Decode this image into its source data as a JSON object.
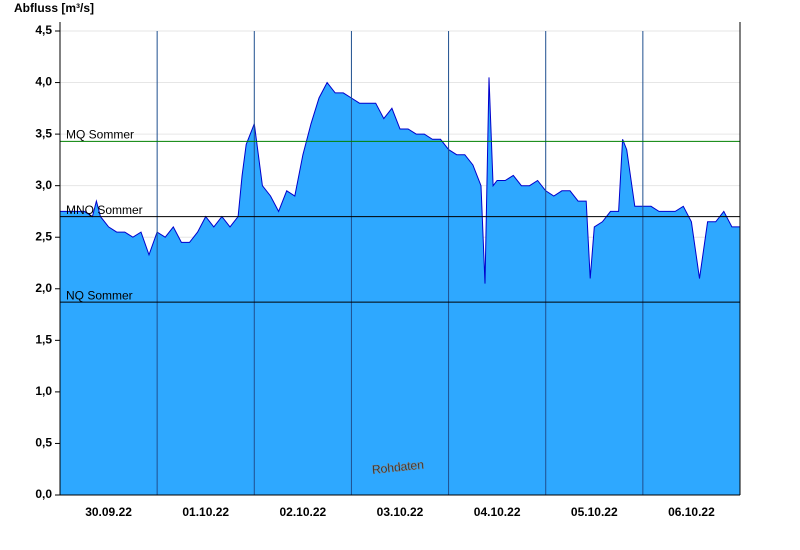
{
  "chart_data": {
    "type": "area",
    "y_label": "Abfluss [m³/s]",
    "annotation": "Rohdaten",
    "fill_color": "#2ea8ff",
    "line_color": "#0000cc",
    "grid": true,
    "x": [
      0,
      2,
      4,
      6,
      8,
      9,
      10,
      12,
      14,
      16,
      18,
      20,
      22,
      24,
      26,
      28,
      30,
      32,
      34,
      36,
      38,
      40,
      42,
      44,
      45,
      46,
      48,
      50,
      52,
      54,
      56,
      58,
      60,
      62,
      64,
      66,
      68,
      70,
      72,
      74,
      76,
      78,
      80,
      82,
      84,
      86,
      88,
      90,
      92,
      94,
      96,
      98,
      100,
      102,
      104,
      105,
      106,
      107,
      108,
      110,
      112,
      114,
      116,
      118,
      120,
      122,
      124,
      126,
      128,
      130,
      131,
      132,
      134,
      136,
      138,
      139,
      140,
      142,
      144,
      146,
      148,
      150,
      152,
      154,
      156,
      158,
      160,
      162,
      164,
      166,
      168
    ],
    "values": [
      2.75,
      2.75,
      2.75,
      2.75,
      2.7,
      2.85,
      2.7,
      2.6,
      2.55,
      2.55,
      2.5,
      2.55,
      2.33,
      2.55,
      2.5,
      2.6,
      2.45,
      2.45,
      2.55,
      2.7,
      2.6,
      2.7,
      2.6,
      2.7,
      3.1,
      3.4,
      3.6,
      3.0,
      2.9,
      2.75,
      2.95,
      2.9,
      3.3,
      3.6,
      3.85,
      4.0,
      3.9,
      3.9,
      3.85,
      3.8,
      3.8,
      3.8,
      3.65,
      3.75,
      3.55,
      3.55,
      3.5,
      3.5,
      3.45,
      3.45,
      3.35,
      3.3,
      3.3,
      3.2,
      3.0,
      2.05,
      4.05,
      3.0,
      3.05,
      3.05,
      3.1,
      3.0,
      3.0,
      3.05,
      2.95,
      2.9,
      2.95,
      2.95,
      2.85,
      2.85,
      2.1,
      2.6,
      2.65,
      2.75,
      2.75,
      3.45,
      3.35,
      2.8,
      2.8,
      2.8,
      2.75,
      2.75,
      2.75,
      2.8,
      2.65,
      2.1,
      2.65,
      2.65,
      2.75,
      2.6,
      2.6
    ],
    "xlim": [
      0,
      168
    ],
    "xticks": [
      {
        "value": 12,
        "label": "30.09.22"
      },
      {
        "value": 36,
        "label": "01.10.22"
      },
      {
        "value": 60,
        "label": "02.10.22"
      },
      {
        "value": 84,
        "label": "03.10.22"
      },
      {
        "value": 108,
        "label": "04.10.22"
      },
      {
        "value": 132,
        "label": "05.10.22"
      },
      {
        "value": 156,
        "label": "06.10.22"
      }
    ],
    "xgrid": [
      24,
      48,
      72,
      96,
      120,
      144
    ],
    "ylim": [
      0,
      4.5
    ],
    "yticks": [
      {
        "value": 0,
        "label": "0,0"
      },
      {
        "value": 0.5,
        "label": "0,5"
      },
      {
        "value": 1,
        "label": "1,0"
      },
      {
        "value": 1.5,
        "label": "1,5"
      },
      {
        "value": 2,
        "label": "2,0"
      },
      {
        "value": 2.5,
        "label": "2,5"
      },
      {
        "value": 3,
        "label": "3,0"
      },
      {
        "value": 3.5,
        "label": "3,5"
      },
      {
        "value": 4,
        "label": "4,0"
      },
      {
        "value": 4.5,
        "label": "4,5"
      }
    ],
    "reference_lines": [
      {
        "label": "MQ Sommer",
        "value": 3.43,
        "color": "#008000"
      },
      {
        "label": "MNQ Sommer",
        "value": 2.7,
        "color": "#000000"
      },
      {
        "label": "NQ Sommer",
        "value": 1.87,
        "color": "#000000"
      }
    ]
  }
}
